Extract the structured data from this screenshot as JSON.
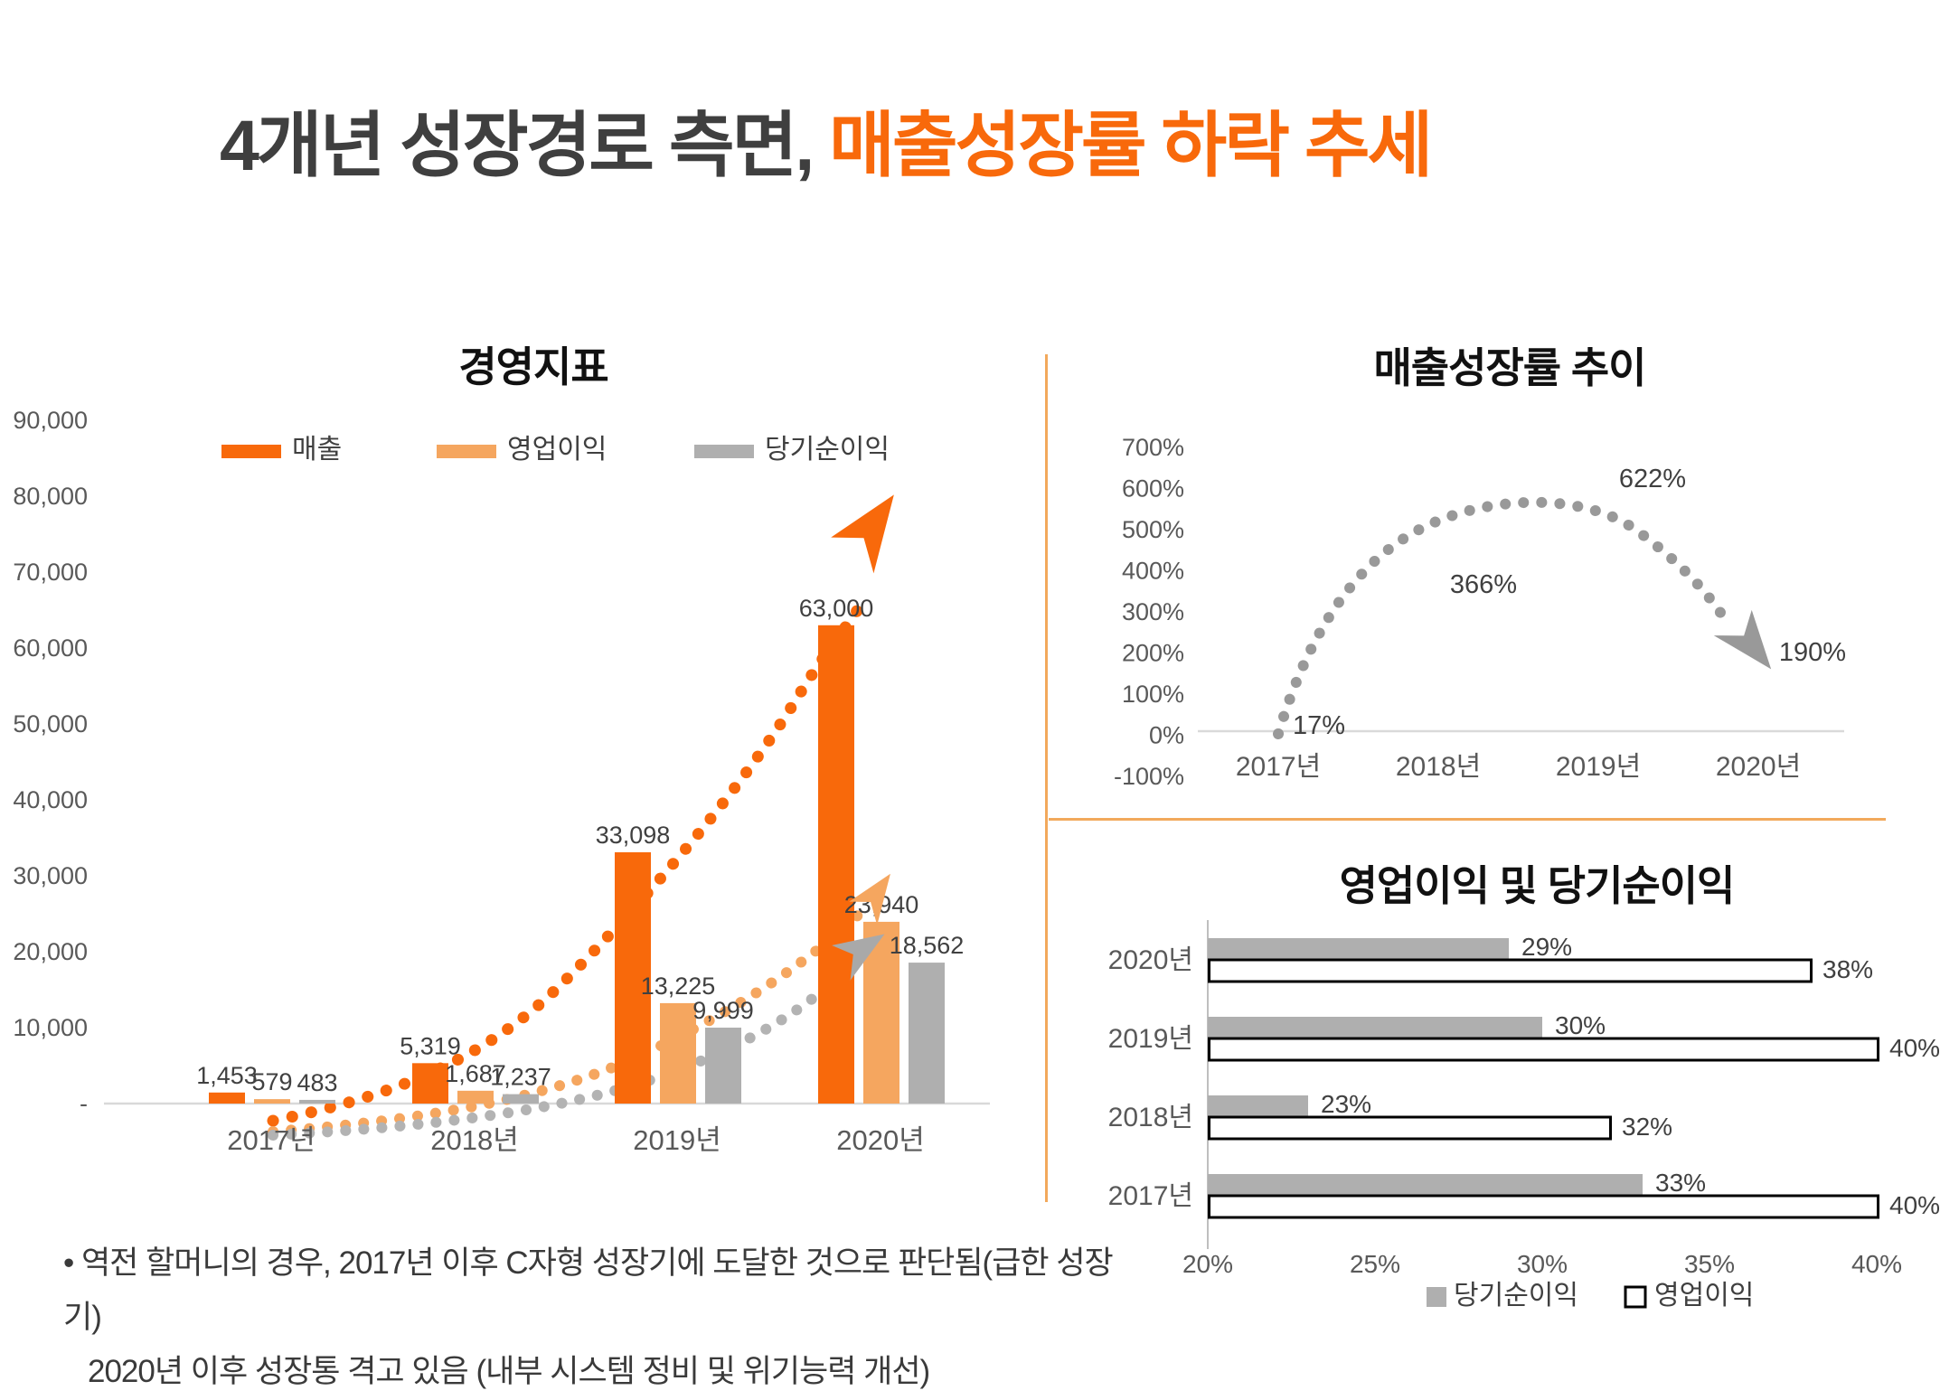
{
  "slide": {
    "title": {
      "prefix": "4개년 성장경로 측면, ",
      "highlight": "매출성장률 하락 추세"
    },
    "footnote_line1": "• 역전 할머니의 경우, 2017년 이후 C자형 성장기에 도달한 것으로 판단됨(급한 성장기)",
    "footnote_line2": "2020년 이후 성장통 격고 있음 (내부 시스템 정비 및 위기능력 개선)"
  },
  "colors": {
    "title_dark": "#3F3F3F",
    "accent_orange": "#F8690B",
    "light_orange": "#F5A65F",
    "bar_gray": "#AFAFAF",
    "curve_gray_left": "#B3B3B3",
    "curve_gray_right": "#999999",
    "axis_text": "#595959",
    "label_text": "#404040",
    "baseline_gray": "#D9D9D9",
    "axis_line_gray": "#BFBFBF",
    "divider_orange": "#F2A95C",
    "white": "#FFFFFF",
    "black": "#000000"
  },
  "chart_data": [
    {
      "id": "management-indicators",
      "type": "bar",
      "title": "경영지표",
      "categories": [
        "2017년",
        "2018년",
        "2019년",
        "2020년"
      ],
      "series": [
        {
          "name": "매출",
          "color": "#F8690B",
          "values": [
            1453,
            5319,
            33098,
            63000
          ],
          "labels": [
            "1,453",
            "5,319",
            "33,098",
            "63,000"
          ]
        },
        {
          "name": "영업이익",
          "color": "#F5A65F",
          "values": [
            579,
            1687,
            13225,
            23940
          ],
          "labels": [
            "579",
            "1,687",
            "13,225",
            "23,940"
          ]
        },
        {
          "name": "당기순이익",
          "color": "#AFAFAF",
          "values": [
            483,
            1237,
            9999,
            18562
          ],
          "labels": [
            "483",
            "1,237",
            "9,999",
            "18,562"
          ]
        }
      ],
      "ylim": [
        0,
        90000
      ],
      "yticks": [
        "90,000",
        "80,000",
        "70,000",
        "60,000",
        "50,000",
        "40,000",
        "30,000",
        "20,000",
        "10,000",
        "-"
      ],
      "legend_position": "top",
      "grid": false,
      "annotations": "dotted exponential trend curves per series ending in arrows"
    },
    {
      "id": "revenue-growth-trend",
      "type": "line",
      "title": "매출성장률 추이",
      "categories": [
        "2017년",
        "2018년",
        "2019년",
        "2020년"
      ],
      "values": [
        17,
        366,
        622,
        190
      ],
      "labels": [
        "17%",
        "366%",
        "622%",
        "190%"
      ],
      "ylim": [
        -100,
        700
      ],
      "yticks": [
        "700%",
        "600%",
        "500%",
        "400%",
        "300%",
        "200%",
        "100%",
        "0%",
        "-100%"
      ],
      "style": "gray dotted arc with downward arrow at end",
      "grid": false
    },
    {
      "id": "profit-margins",
      "type": "bar",
      "orientation": "horizontal",
      "title": "영업이익 및 당기순이익",
      "categories": [
        "2020년",
        "2019년",
        "2018년",
        "2017년"
      ],
      "series": [
        {
          "name": "당기순이익",
          "fill": "#AFAFAF",
          "border": "none",
          "values": [
            29,
            30,
            23,
            33
          ],
          "labels": [
            "29%",
            "30%",
            "23%",
            "33%"
          ]
        },
        {
          "name": "영업이익",
          "fill": "#FFFFFF",
          "border": "#000000",
          "values": [
            38,
            40,
            32,
            40
          ],
          "labels": [
            "38%",
            "40%",
            "32%",
            "40%"
          ]
        }
      ],
      "xlim": [
        20,
        40
      ],
      "xticks": [
        "20%",
        "25%",
        "30%",
        "35%",
        "40%"
      ],
      "legend_position": "bottom",
      "grid": false
    }
  ]
}
